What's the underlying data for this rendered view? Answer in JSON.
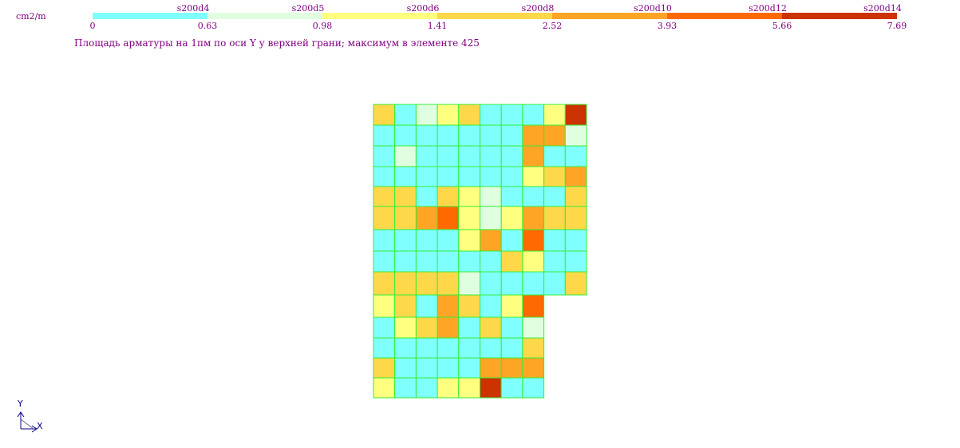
{
  "legend": {
    "unit": "cm2/m",
    "caption": "Площадь арматуры на 1пм по оси Y у верхней грани; максимум в элементе 425",
    "bins": [
      {
        "label": "s200d4",
        "color": "#80ffff"
      },
      {
        "label": "s200d5",
        "color": "#e0ffe0"
      },
      {
        "label": "s200d6",
        "color": "#ffff80"
      },
      {
        "label": "s200d8",
        "color": "#ffd84a"
      },
      {
        "label": "s200d10",
        "color": "#ffa526"
      },
      {
        "label": "s200d12",
        "color": "#ff6a00"
      },
      {
        "label": "s200d14",
        "color": "#cc3300"
      }
    ],
    "thresholds": [
      "0",
      "0.63",
      "0.98",
      "1.41",
      "2.52",
      "3.93",
      "5.66",
      "7.69"
    ]
  },
  "mesh": {
    "line_color": "#33ee33",
    "rows": [
      [
        3,
        0,
        1,
        2,
        3,
        0,
        0,
        0,
        2,
        6
      ],
      [
        0,
        0,
        0,
        0,
        0,
        0,
        0,
        4,
        4,
        1
      ],
      [
        0,
        1,
        0,
        0,
        0,
        0,
        0,
        4,
        0,
        0
      ],
      [
        0,
        0,
        0,
        0,
        0,
        0,
        0,
        2,
        3,
        4
      ],
      [
        3,
        3,
        0,
        3,
        2,
        1,
        0,
        0,
        0,
        3
      ],
      [
        3,
        3,
        4,
        5,
        2,
        1,
        2,
        4,
        3,
        3
      ],
      [
        0,
        0,
        0,
        0,
        2,
        4,
        0,
        5,
        0,
        0
      ],
      [
        0,
        0,
        0,
        0,
        0,
        0,
        3,
        2,
        0,
        0
      ],
      [
        3,
        3,
        3,
        3,
        1,
        0,
        0,
        0,
        0,
        3
      ],
      [
        2,
        3,
        0,
        4,
        3,
        0,
        2,
        5
      ],
      [
        0,
        2,
        3,
        4,
        0,
        3,
        0,
        1
      ],
      [
        0,
        0,
        0,
        0,
        0,
        0,
        0,
        3
      ],
      [
        3,
        0,
        0,
        0,
        0,
        4,
        4,
        4
      ],
      [
        2,
        0,
        0,
        2,
        2,
        6,
        0,
        0
      ]
    ]
  },
  "axes": {
    "y_label": "Y",
    "x_label": "X"
  }
}
